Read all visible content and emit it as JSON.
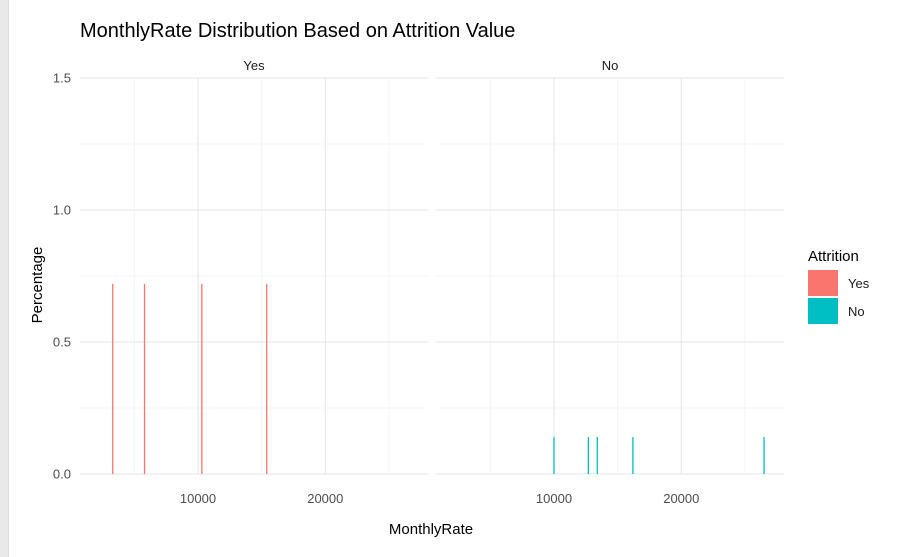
{
  "chart_data": {
    "type": "bar",
    "title": "MonthlyRate Distribution Based on Attrition Value",
    "xlabel": "MonthlyRate",
    "ylabel": "Percentage",
    "ylim": [
      0,
      1.5
    ],
    "y_ticks": [
      "0.0",
      "0.5",
      "1.0",
      "1.5"
    ],
    "x_ticks": [
      "10000",
      "20000"
    ],
    "grid": true,
    "legend": {
      "title": "Attrition",
      "placement": "right",
      "entries": [
        {
          "label": "Yes",
          "color": "#F8766D"
        },
        {
          "label": "No",
          "color": "#00BFC4"
        }
      ]
    },
    "facets": [
      {
        "label": "Yes",
        "color": "#F8766D",
        "x": [
          3300,
          5800,
          10300,
          15400
        ],
        "values": [
          0.72,
          0.72,
          0.72,
          0.72
        ]
      },
      {
        "label": "No",
        "color": "#00BFC4",
        "x": [
          10000,
          12700,
          13400,
          16200,
          26500
        ],
        "values": [
          0.14,
          0.14,
          0.14,
          0.14,
          0.14
        ]
      }
    ]
  }
}
